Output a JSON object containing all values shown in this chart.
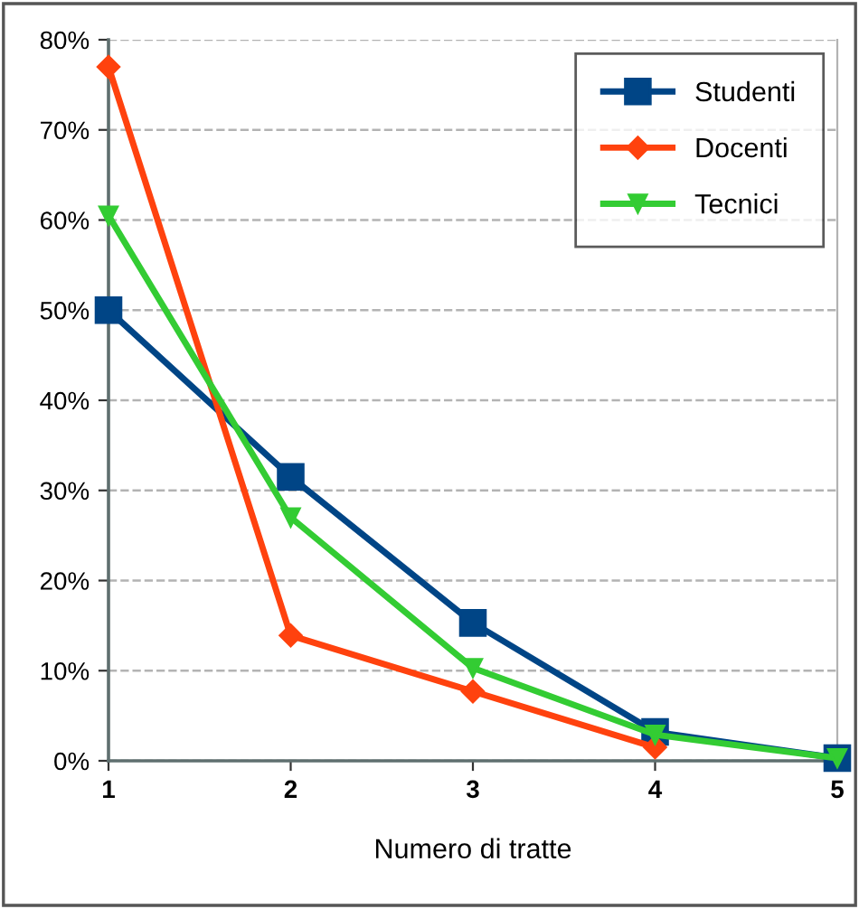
{
  "chart_data": {
    "type": "line",
    "xlabel": "Numero di tratte",
    "x": [
      1,
      2,
      3,
      4,
      5
    ],
    "series": [
      {
        "name": "Studenti",
        "color": "#004586",
        "marker": "square",
        "values": [
          0.5,
          0.315,
          0.153,
          0.032,
          0.003
        ]
      },
      {
        "name": "Docenti",
        "color": "#ff420e",
        "marker": "diamond",
        "values": [
          0.77,
          0.139,
          0.077,
          0.015,
          null
        ]
      },
      {
        "name": "Tecnici",
        "color": "#33cc33",
        "marker": "triangle",
        "values": [
          0.605,
          0.27,
          0.103,
          0.029,
          0.003
        ]
      }
    ],
    "xlim": [
      1,
      5
    ],
    "xticks": [
      1,
      2,
      3,
      4,
      5
    ],
    "ylim": [
      0,
      0.8
    ],
    "yticks": [
      {
        "value": 0,
        "label": "0%"
      },
      {
        "value": 0.1,
        "label": "10%"
      },
      {
        "value": 0.2,
        "label": "20%"
      },
      {
        "value": 0.3,
        "label": "30%"
      },
      {
        "value": 0.4,
        "label": "40%"
      },
      {
        "value": 0.5,
        "label": "50%"
      },
      {
        "value": 0.6,
        "label": "60%"
      },
      {
        "value": 0.7,
        "label": "70%"
      },
      {
        "value": 0.8,
        "label": "80%"
      }
    ],
    "grid": "y",
    "legend": "top right",
    "line_style": "solid"
  }
}
